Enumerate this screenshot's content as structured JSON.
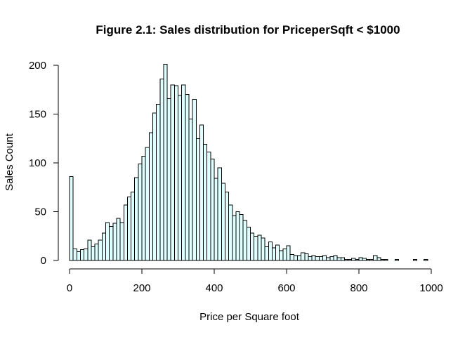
{
  "chart_data": {
    "type": "bar",
    "title": "Figure 2.1: Sales distribution for PriceperSqft <  $1000",
    "xlabel": "Price per Square foot",
    "ylabel": "Sales Count",
    "xlim": [
      0,
      1000
    ],
    "ylim": [
      0,
      200
    ],
    "bin_width": 10,
    "x_ticks": [
      0,
      200,
      400,
      600,
      800,
      1000
    ],
    "y_ticks": [
      0,
      50,
      100,
      150,
      200
    ],
    "grid": false,
    "legend": "none",
    "bar_fill": "#e0ffff",
    "bar_stroke": "#000000",
    "values": [
      86,
      12,
      9,
      11,
      12,
      21,
      14,
      17,
      21,
      28,
      39,
      35,
      38,
      43,
      39,
      57,
      65,
      70,
      85,
      99,
      107,
      116,
      131,
      151,
      160,
      186,
      201,
      166,
      180,
      179,
      169,
      180,
      170,
      145,
      165,
      125,
      139,
      119,
      111,
      104,
      84,
      95,
      79,
      70,
      57,
      46,
      50,
      47,
      41,
      34,
      28,
      25,
      26,
      23,
      14,
      19,
      13,
      16,
      10,
      12,
      15,
      6,
      5,
      5,
      8,
      7,
      4,
      5,
      4,
      4,
      5,
      3,
      4,
      5,
      3,
      3,
      1,
      1,
      2,
      1,
      3,
      2,
      1,
      1,
      5,
      3,
      1,
      1,
      0,
      0,
      1,
      0,
      0,
      0,
      0,
      1,
      0,
      0,
      1,
      0,
      0,
      0,
      0,
      0,
      0,
      0,
      0,
      0,
      0,
      0,
      0,
      0,
      0,
      0,
      0,
      0,
      0,
      0,
      0,
      0,
      0,
      0,
      0,
      0,
      0,
      0,
      0,
      0,
      0,
      0,
      0,
      0,
      0,
      0,
      0,
      0,
      0,
      0,
      0,
      0,
      0,
      0,
      0,
      0,
      0,
      0,
      0,
      0,
      0,
      0,
      0,
      0,
      0,
      0,
      0,
      0,
      0,
      0,
      0,
      0,
      0,
      0,
      0,
      0,
      0,
      0,
      0,
      0,
      0,
      0,
      0,
      0,
      0,
      0,
      0,
      0,
      0,
      0,
      0,
      0,
      0,
      0,
      0,
      0,
      0,
      0,
      0,
      0,
      0,
      0,
      0,
      0,
      0,
      0,
      0,
      0,
      0,
      0,
      0,
      0
    ]
  }
}
